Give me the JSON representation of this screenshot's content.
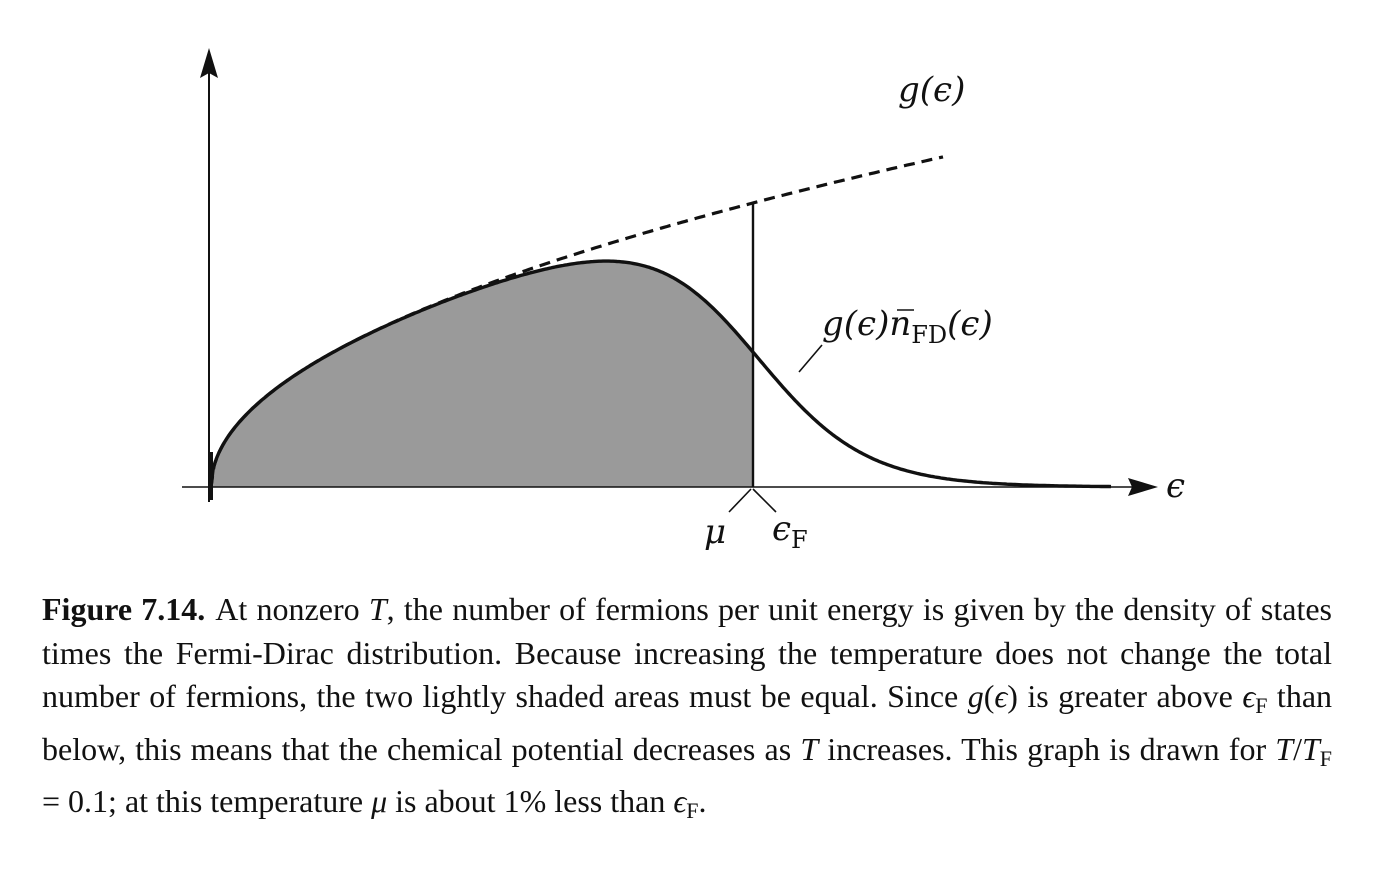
{
  "figure": {
    "labels": {
      "g_label": "g(ϵ)",
      "product_label_a": "g(ϵ)",
      "product_label_n": "n",
      "product_label_sub": "FD",
      "product_label_b": "(ϵ)",
      "mu_label": "μ",
      "epsf_label": "ϵ",
      "epsf_sub": "F",
      "x_axis_label": "ϵ"
    }
  },
  "chart_data": {
    "type": "area",
    "x_axis_label": "ϵ",
    "curves": [
      {
        "name": "g(ϵ)",
        "style": "dashed",
        "form": "square root"
      },
      {
        "name": "g(ϵ)n̄FD(ϵ)",
        "style": "solid",
        "fill": "gray"
      }
    ],
    "markers": [
      "μ",
      "ϵF"
    ],
    "T_over_TF": 0.1,
    "mu_over_epsF": 0.99
  },
  "caption": {
    "title": "Figure 7.14.",
    "segments": [
      {
        "t": "At nonzero ",
        "s": "text"
      },
      {
        "t": "T",
        "s": "math"
      },
      {
        "t": ", the number of fermions per unit energy is given by the density of states times the Fermi-Dirac distribution.  Because increasing the temperature does not change the total number of fermions, the two lightly shaded areas must be equal. Since ",
        "s": "text"
      },
      {
        "t": "g",
        "s": "math"
      },
      {
        "t": "(",
        "s": "text"
      },
      {
        "t": "ϵ",
        "s": "math"
      },
      {
        "t": ")",
        "s": "text"
      },
      {
        "t": " is greater above ",
        "s": "text"
      },
      {
        "t": "ϵ",
        "s": "math"
      },
      {
        "t": "F",
        "s": "msub"
      },
      {
        "t": " than below, this means that the chemical potential decreases as ",
        "s": "text"
      },
      {
        "t": "T",
        "s": "math"
      },
      {
        "t": " increases. This graph is drawn for ",
        "s": "text"
      },
      {
        "t": "T",
        "s": "math"
      },
      {
        "t": "/",
        "s": "text"
      },
      {
        "t": "T",
        "s": "math"
      },
      {
        "t": "F",
        "s": "msub"
      },
      {
        "t": " = 0.1; at this temperature ",
        "s": "text"
      },
      {
        "t": "μ",
        "s": "math"
      },
      {
        "t": " is about 1% less than ",
        "s": "text"
      },
      {
        "t": "ϵ",
        "s": "math"
      },
      {
        "t": "F",
        "s": "msub"
      },
      {
        "t": ".",
        "s": "text"
      }
    ]
  }
}
